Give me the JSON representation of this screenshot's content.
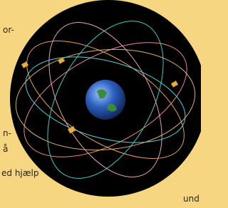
{
  "text_fragments": [
    "or-",
    "n-",
    "å",
    "ed hjælp",
    "und"
  ]
}
